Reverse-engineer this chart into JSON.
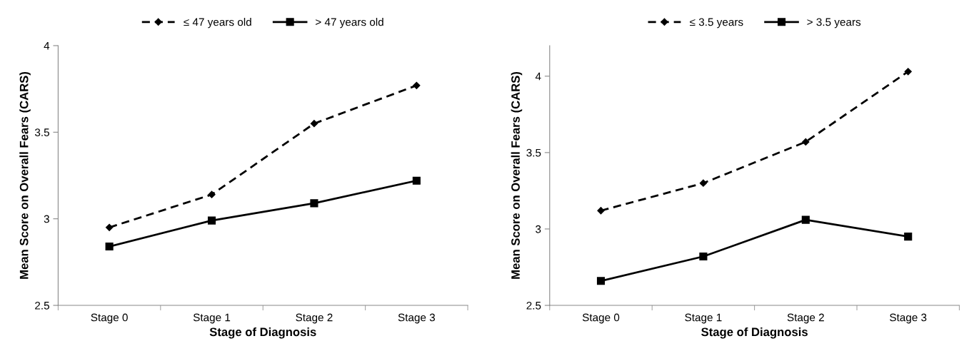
{
  "chart_data": [
    {
      "type": "line",
      "xlabel": "Stage of Diagnosis",
      "ylabel": "Mean Score on Overall Fears (CARS)",
      "categories": [
        "Stage 0",
        "Stage 1",
        "Stage 2",
        "Stage 3"
      ],
      "series": [
        {
          "name": "≤ 47 years old",
          "color": "#000000",
          "values": [
            2.95,
            3.14,
            3.55,
            3.77
          ],
          "line_style": "dashed",
          "marker": "diamond"
        },
        {
          "name": "> 47 years old",
          "color": "#000000",
          "values": [
            2.84,
            2.99,
            3.09,
            3.22
          ],
          "line_style": "solid",
          "marker": "square"
        }
      ],
      "ylim": [
        2.5,
        4
      ],
      "yticks": [
        2.5,
        3,
        3.5,
        4
      ],
      "grid": false,
      "legend": "top"
    },
    {
      "type": "line",
      "xlabel": "Stage of Diagnosis",
      "ylabel": "Mean Score on Overall Fears (CARS)",
      "categories": [
        "Stage 0",
        "Stage 1",
        "Stage 2",
        "Stage 3"
      ],
      "series": [
        {
          "name": "≤ 3.5 years",
          "color": "#000000",
          "values": [
            3.12,
            3.3,
            3.57,
            4.03
          ],
          "line_style": "dashed",
          "marker": "diamond"
        },
        {
          "name": "> 3.5 years",
          "color": "#000000",
          "values": [
            2.66,
            2.82,
            3.06,
            2.95
          ],
          "line_style": "solid",
          "marker": "square"
        }
      ],
      "ylim": [
        2.5,
        4.2
      ],
      "yticks": [
        2.5,
        3,
        3.5,
        4
      ],
      "grid": false,
      "legend": "top"
    }
  ]
}
